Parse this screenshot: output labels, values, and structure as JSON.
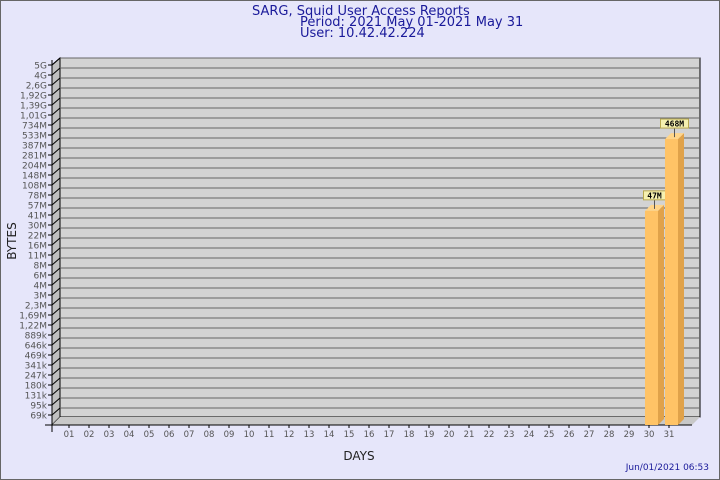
{
  "header": {
    "title": "SARG, Squid User Access Reports",
    "period": "Period: 2021 May 01-2021 May 31",
    "user": "User: 10.42.42.224"
  },
  "footer": {
    "generated": "Jun/01/2021 06:53"
  },
  "colors": {
    "background": "#e6e6fa",
    "plot": "#d3d3d3",
    "bar_front": "#ffc366",
    "bar_side": "#e0a24a",
    "title": "#1a1a9a"
  },
  "chart_data": {
    "type": "bar",
    "title": "SARG, Squid User Access Reports",
    "xlabel": "DAYS",
    "ylabel": "BYTES",
    "y_scale": "log",
    "grid": true,
    "y_ticks": [
      "5G",
      "4G",
      "2,6G",
      "1,92G",
      "1,39G",
      "1,01G",
      "734M",
      "533M",
      "387M",
      "281M",
      "204M",
      "148M",
      "108M",
      "78M",
      "57M",
      "41M",
      "30M",
      "22M",
      "16M",
      "11M",
      "8M",
      "6M",
      "4M",
      "3M",
      "2,3M",
      "1,69M",
      "1,22M",
      "889k",
      "646k",
      "469k",
      "341k",
      "247k",
      "180k",
      "131k",
      "95k",
      "69k"
    ],
    "categories": [
      "01",
      "02",
      "03",
      "04",
      "05",
      "06",
      "07",
      "08",
      "09",
      "10",
      "11",
      "12",
      "13",
      "14",
      "15",
      "16",
      "17",
      "18",
      "19",
      "20",
      "21",
      "22",
      "23",
      "24",
      "25",
      "26",
      "27",
      "28",
      "29",
      "30",
      "31"
    ],
    "bars": [
      {
        "day": "30",
        "value": 47000000,
        "label": "47M"
      },
      {
        "day": "31",
        "value": 468000000,
        "label": "468M"
      }
    ]
  }
}
